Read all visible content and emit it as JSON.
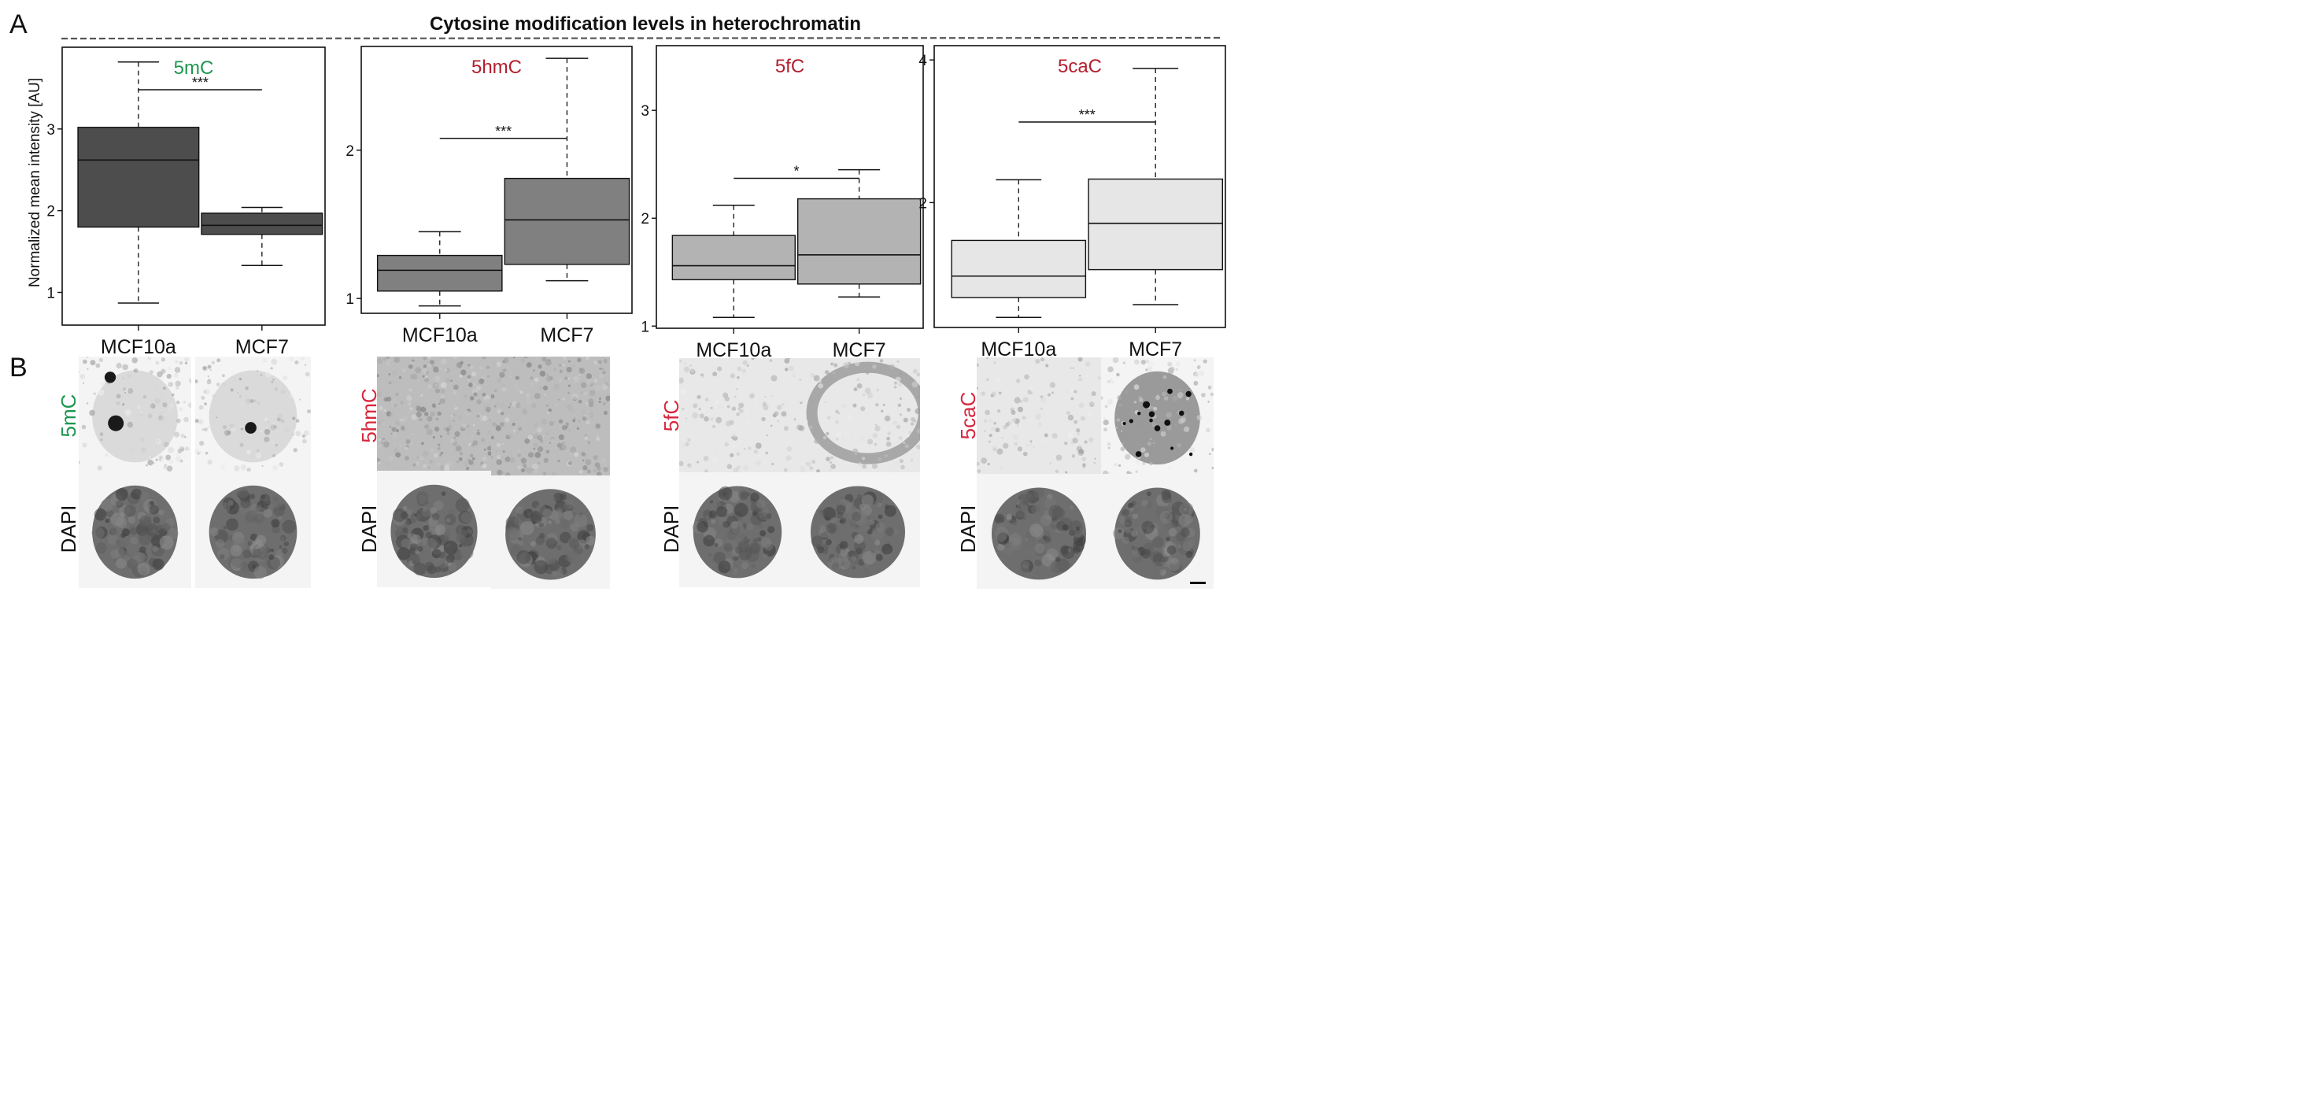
{
  "figure": {
    "panel_a_letter": "A",
    "panel_b_letter": "B",
    "title": "Cytosine modification levels in heterochromatin",
    "ylabel": "Normalized mean intensity [AU]"
  },
  "chart_data": [
    {
      "type": "boxplot",
      "title": "5mC",
      "title_color": "#1e9650",
      "box_color": "#4d4d4d",
      "categories": [
        "MCF10a",
        "MCF7"
      ],
      "ylim": [
        0.6,
        4.0
      ],
      "yticks": [
        "1",
        "2",
        "3"
      ],
      "boxes": [
        {
          "whisker_low": 0.87,
          "q1": 1.8,
          "median": 2.62,
          "q3": 3.02,
          "whisker_high": 3.82
        },
        {
          "whisker_low": 1.33,
          "q1": 1.71,
          "median": 1.82,
          "q3": 1.97,
          "whisker_high": 2.04
        }
      ],
      "significance": {
        "label": "***",
        "y": 3.48
      },
      "ylabel": "Normalized mean intensity [AU]"
    },
    {
      "type": "boxplot",
      "title": "5hmC",
      "title_color": "#b21f2d",
      "box_color": "#808080",
      "categories": [
        "MCF10a",
        "MCF7"
      ],
      "ylim": [
        0.9,
        2.7
      ],
      "yticks": [
        "1",
        "2"
      ],
      "boxes": [
        {
          "whisker_low": 0.95,
          "q1": 1.05,
          "median": 1.19,
          "q3": 1.29,
          "whisker_high": 1.45
        },
        {
          "whisker_low": 1.12,
          "q1": 1.23,
          "median": 1.53,
          "q3": 1.81,
          "whisker_high": 2.62
        }
      ],
      "significance": {
        "label": "***",
        "y": 2.08
      }
    },
    {
      "type": "boxplot",
      "title": "5fC",
      "title_color": "#b21f2d",
      "box_color": "#b3b3b3",
      "categories": [
        "MCF10a",
        "MCF7"
      ],
      "ylim": [
        0.98,
        3.6
      ],
      "yticks": [
        "1",
        "2",
        "3"
      ],
      "boxes": [
        {
          "whisker_low": 1.08,
          "q1": 1.43,
          "median": 1.56,
          "q3": 1.84,
          "whisker_high": 2.12
        },
        {
          "whisker_low": 1.27,
          "q1": 1.39,
          "median": 1.66,
          "q3": 2.18,
          "whisker_high": 2.45
        }
      ],
      "significance": {
        "label": "*",
        "y": 2.37
      }
    },
    {
      "type": "boxplot",
      "title": "5caC",
      "title_color": "#b21f2d",
      "box_color": "#e6e6e6",
      "categories": [
        "MCF10a",
        "MCF7"
      ],
      "ylim": [
        0.25,
        4.2
      ],
      "yticks": [
        "2",
        "4"
      ],
      "boxes": [
        {
          "whisker_low": 0.39,
          "q1": 0.67,
          "median": 0.97,
          "q3": 1.47,
          "whisker_high": 2.32
        },
        {
          "whisker_low": 0.57,
          "q1": 1.06,
          "median": 1.71,
          "q3": 2.33,
          "whisker_high": 3.88
        }
      ],
      "significance": {
        "label": "***",
        "y": 3.13
      }
    }
  ],
  "micrographs": {
    "groups": [
      {
        "mark": "5mC",
        "mark_color": "#1e9650",
        "dapi_label": "DAPI"
      },
      {
        "mark": "5hmC",
        "mark_color": "#d7263d",
        "dapi_label": "DAPI"
      },
      {
        "mark": "5fC",
        "mark_color": "#d7263d",
        "dapi_label": "DAPI"
      },
      {
        "mark": "5caC",
        "mark_color": "#d7263d",
        "dapi_label": "DAPI"
      }
    ]
  }
}
